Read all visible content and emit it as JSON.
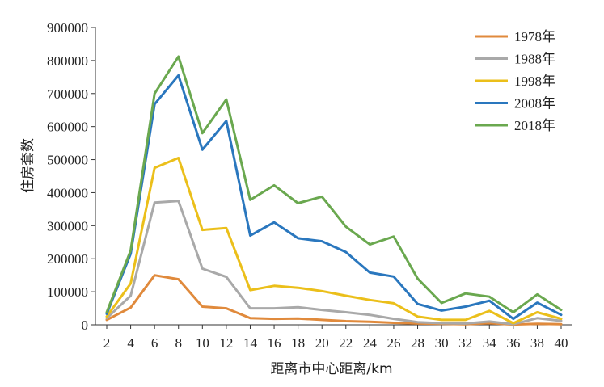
{
  "chart_data": {
    "type": "line",
    "xlabel": "距离市中心距离/km",
    "ylabel": "住房套数",
    "x": [
      2,
      4,
      6,
      8,
      10,
      12,
      14,
      16,
      18,
      20,
      22,
      24,
      26,
      28,
      30,
      32,
      34,
      36,
      38,
      40
    ],
    "ylim": [
      0,
      900000
    ],
    "yticks": [
      0,
      100000,
      200000,
      300000,
      400000,
      500000,
      600000,
      700000,
      800000,
      900000
    ],
    "grid": false,
    "legend_position": "top-right",
    "series": [
      {
        "name": "1978年",
        "color": "#E08A3C",
        "values": [
          15000,
          52000,
          150000,
          138000,
          55000,
          50000,
          20000,
          18000,
          19000,
          15000,
          11000,
          9000,
          6000,
          4000,
          3000,
          2000,
          5000,
          1000,
          3000,
          2000
        ]
      },
      {
        "name": "1988年",
        "color": "#A9A9A9",
        "values": [
          20000,
          88000,
          370000,
          375000,
          170000,
          145000,
          50000,
          50000,
          53000,
          45000,
          38000,
          30000,
          18000,
          8000,
          5000,
          4000,
          10000,
          2000,
          20000,
          12000
        ]
      },
      {
        "name": "1998年",
        "color": "#EBBF1A",
        "values": [
          25000,
          125000,
          475000,
          505000,
          287000,
          293000,
          105000,
          118000,
          112000,
          102000,
          88000,
          75000,
          65000,
          25000,
          15000,
          15000,
          42000,
          5000,
          38000,
          18000
        ]
      },
      {
        "name": "2008年",
        "color": "#2A77BE",
        "values": [
          33000,
          215000,
          668000,
          755000,
          530000,
          617000,
          270000,
          310000,
          262000,
          253000,
          220000,
          158000,
          146000,
          63000,
          43000,
          55000,
          73000,
          18000,
          67000,
          30000
        ]
      },
      {
        "name": "2018年",
        "color": "#6AA84F",
        "values": [
          38000,
          225000,
          700000,
          812000,
          580000,
          682000,
          378000,
          422000,
          368000,
          388000,
          297000,
          243000,
          267000,
          140000,
          66000,
          95000,
          85000,
          38000,
          92000,
          45000
        ]
      }
    ]
  }
}
